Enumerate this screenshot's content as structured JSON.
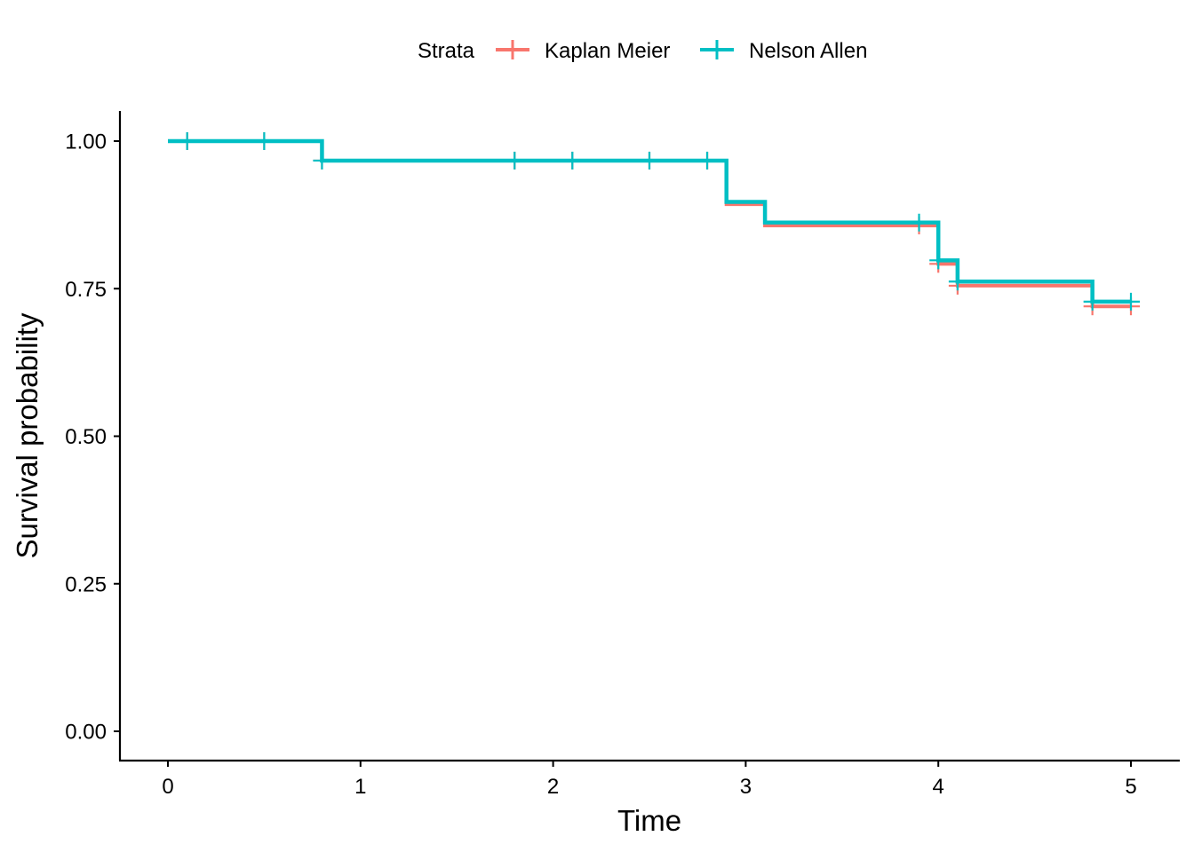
{
  "chart_data": {
    "type": "line",
    "step": true,
    "xlabel": "Time",
    "ylabel": "Survival probability",
    "xlim": [
      -0.25,
      5.25
    ],
    "ylim": [
      -0.05,
      1.05
    ],
    "x_ticks": [
      0,
      1,
      2,
      3,
      4,
      5
    ],
    "x_tick_labels": [
      "0",
      "1",
      "2",
      "3",
      "4",
      "5"
    ],
    "y_ticks": [
      0,
      0.25,
      0.5,
      0.75,
      1.0
    ],
    "y_tick_labels": [
      "0.00",
      "0.25",
      "0.50",
      "0.75",
      "1.00"
    ],
    "grid": false,
    "legend": {
      "title": "Strata",
      "placement": "top",
      "entries": [
        "Kaplan Meier",
        "Nelson Allen"
      ]
    },
    "series": [
      {
        "name": "Kaplan Meier",
        "color": "#F8766D",
        "steps": [
          {
            "x": 0,
            "y": 1.0
          },
          {
            "x": 0.8,
            "y": 0.967
          },
          {
            "x": 2.9,
            "y": 0.893
          },
          {
            "x": 3.1,
            "y": 0.857
          },
          {
            "x": 4.0,
            "y": 0.792
          },
          {
            "x": 4.1,
            "y": 0.755
          },
          {
            "x": 4.8,
            "y": 0.72
          }
        ],
        "x_end": 5.0,
        "censor_marks": [
          {
            "x": 0.1,
            "y": 1.0
          },
          {
            "x": 0.5,
            "y": 1.0
          },
          {
            "x": 0.8,
            "y": 0.967
          },
          {
            "x": 1.8,
            "y": 0.967
          },
          {
            "x": 2.1,
            "y": 0.967
          },
          {
            "x": 2.5,
            "y": 0.967
          },
          {
            "x": 2.8,
            "y": 0.967
          },
          {
            "x": 3.9,
            "y": 0.857
          },
          {
            "x": 4.0,
            "y": 0.792
          },
          {
            "x": 4.1,
            "y": 0.755
          },
          {
            "x": 4.8,
            "y": 0.72
          },
          {
            "x": 5.0,
            "y": 0.72
          }
        ]
      },
      {
        "name": "Nelson Allen",
        "color": "#00BFC4",
        "steps": [
          {
            "x": 0,
            "y": 1.0
          },
          {
            "x": 0.8,
            "y": 0.967
          },
          {
            "x": 2.9,
            "y": 0.897
          },
          {
            "x": 3.1,
            "y": 0.862
          },
          {
            "x": 4.0,
            "y": 0.798
          },
          {
            "x": 4.1,
            "y": 0.762
          },
          {
            "x": 4.8,
            "y": 0.728
          }
        ],
        "x_end": 5.0,
        "censor_marks": [
          {
            "x": 0.1,
            "y": 1.0
          },
          {
            "x": 0.5,
            "y": 1.0
          },
          {
            "x": 0.8,
            "y": 0.967
          },
          {
            "x": 1.8,
            "y": 0.967
          },
          {
            "x": 2.1,
            "y": 0.967
          },
          {
            "x": 2.5,
            "y": 0.967
          },
          {
            "x": 2.8,
            "y": 0.967
          },
          {
            "x": 3.9,
            "y": 0.862
          },
          {
            "x": 4.0,
            "y": 0.798
          },
          {
            "x": 4.1,
            "y": 0.762
          },
          {
            "x": 4.8,
            "y": 0.728
          },
          {
            "x": 5.0,
            "y": 0.728
          }
        ]
      }
    ]
  }
}
